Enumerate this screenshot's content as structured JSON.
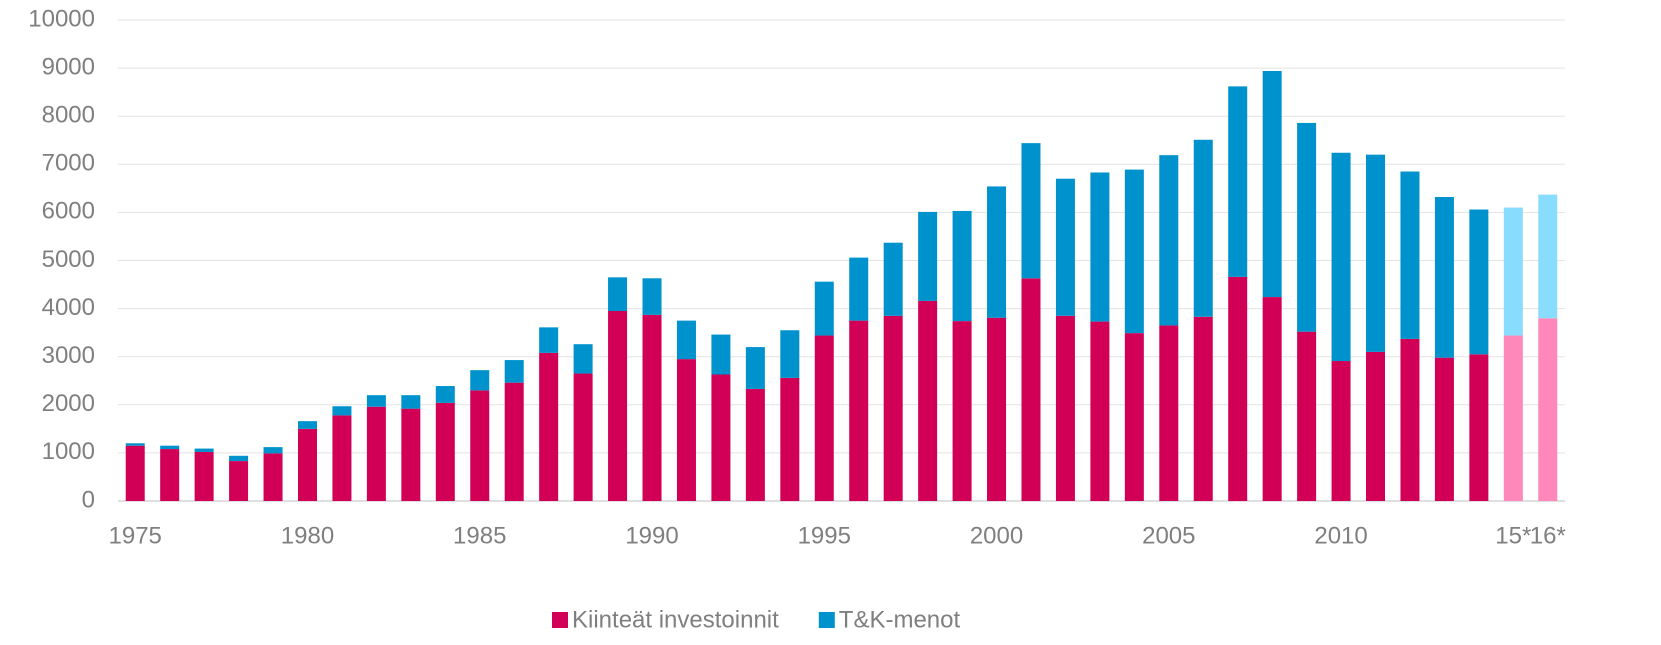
{
  "chart_data": {
    "type": "stacked_bar",
    "categories": [
      "1975",
      null,
      null,
      null,
      null,
      "1980",
      null,
      null,
      null,
      null,
      "1985",
      null,
      null,
      null,
      null,
      "1990",
      null,
      null,
      null,
      null,
      "1995",
      null,
      null,
      null,
      null,
      "2000",
      null,
      null,
      null,
      null,
      "2005",
      null,
      null,
      null,
      null,
      "2010",
      null,
      null,
      null,
      null,
      "15*",
      "16*"
    ],
    "series": [
      {
        "name": "Kiinteät investoinnit",
        "color": "#d10056",
        "colors": [
          "#d10056",
          "#d10056",
          "#d10056",
          "#d10056",
          "#d10056",
          "#d10056",
          "#d10056",
          "#d10056",
          "#d10056",
          "#d10056",
          "#d10056",
          "#d10056",
          "#d10056",
          "#d10056",
          "#d10056",
          "#d10056",
          "#d10056",
          "#d10056",
          "#d10056",
          "#d10056",
          "#d10056",
          "#d10056",
          "#d10056",
          "#d10056",
          "#d10056",
          "#d10056",
          "#d10056",
          "#d10056",
          "#d10056",
          "#d10056",
          "#d10056",
          "#d10056",
          "#d10056",
          "#d10056",
          "#d10056",
          "#d10056",
          "#d10056",
          "#d10056",
          "#d10056",
          "#d10056",
          "#ff88bb",
          "#ff88bb"
        ],
        "values": [
          1150,
          1080,
          1020,
          830,
          990,
          1500,
          1780,
          1960,
          1920,
          2040,
          2300,
          2460,
          3080,
          2650,
          3950,
          3870,
          2950,
          2630,
          2330,
          2560,
          3440,
          3750,
          3850,
          4160,
          3740,
          3810,
          4630,
          3850,
          3730,
          3490,
          3650,
          3830,
          4660,
          4240,
          3520,
          2910,
          3100,
          3370,
          2980,
          3050,
          3440,
          3800
        ]
      },
      {
        "name": "T&K-menot",
        "color": "#0092cc",
        "colors": [
          "#0092cc",
          "#0092cc",
          "#0092cc",
          "#0092cc",
          "#0092cc",
          "#0092cc",
          "#0092cc",
          "#0092cc",
          "#0092cc",
          "#0092cc",
          "#0092cc",
          "#0092cc",
          "#0092cc",
          "#0092cc",
          "#0092cc",
          "#0092cc",
          "#0092cc",
          "#0092cc",
          "#0092cc",
          "#0092cc",
          "#0092cc",
          "#0092cc",
          "#0092cc",
          "#0092cc",
          "#0092cc",
          "#0092cc",
          "#0092cc",
          "#0092cc",
          "#0092cc",
          "#0092cc",
          "#0092cc",
          "#0092cc",
          "#0092cc",
          "#0092cc",
          "#0092cc",
          "#0092cc",
          "#0092cc",
          "#0092cc",
          "#0092cc",
          "#0092cc",
          "#88ddff",
          "#88ddff"
        ],
        "values": [
          50,
          70,
          70,
          110,
          130,
          160,
          190,
          240,
          280,
          350,
          420,
          470,
          530,
          610,
          700,
          760,
          800,
          830,
          870,
          990,
          1120,
          1310,
          1520,
          1850,
          2290,
          2730,
          2810,
          2850,
          3100,
          3400,
          3540,
          3680,
          3960,
          4700,
          4340,
          4330,
          4100,
          3480,
          3340,
          3010,
          2660,
          2570
        ]
      }
    ],
    "ylim": [
      0,
      10000
    ],
    "yticks": [
      0,
      1000,
      2000,
      3000,
      4000,
      5000,
      6000,
      7000,
      8000,
      9000,
      10000
    ],
    "grid": true,
    "legend": "bottom"
  }
}
